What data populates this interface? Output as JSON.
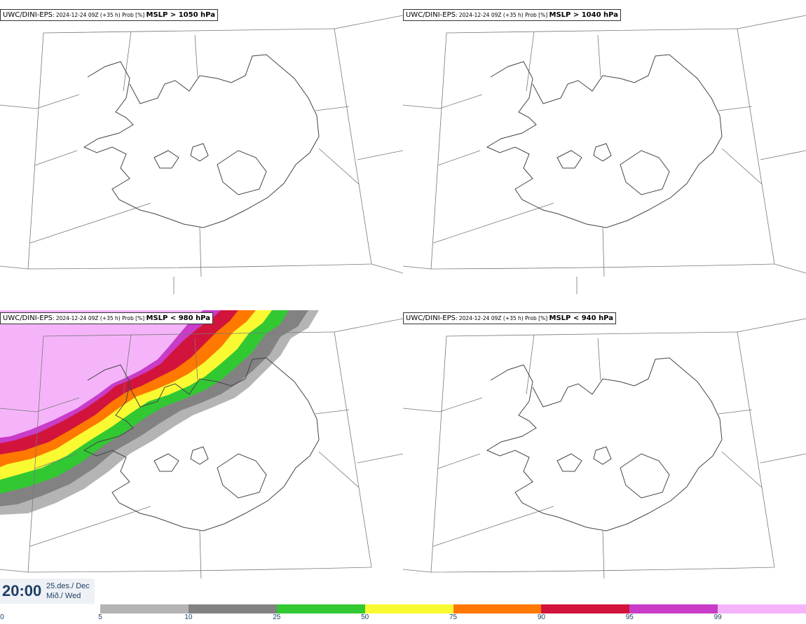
{
  "panels": [
    {
      "model": "UWC/DINI-EPS",
      "meta": ": 2024-12-24 09Z (+35 h) Prob [%] ",
      "field": "MSLP > 1050 hPa"
    },
    {
      "model": "UWC/DINI-EPS",
      "meta": ": 2024-12-24 09Z (+35 h) Prob [%] ",
      "field": "MSLP > 1040 hPa"
    },
    {
      "model": "UWC/DINI-EPS",
      "meta": ": 2024-12-24 09Z (+35 h) Prob [%] ",
      "field": "MSLP < 980 hPa"
    },
    {
      "model": "UWC/DINI-EPS",
      "meta": ": 2024-12-24 09Z (+35 h) Prob [%] ",
      "field": "MSLP < 940 hPa"
    }
  ],
  "valid_time": {
    "clock": "20:00",
    "date": "25.des./ Dec",
    "weekday": "Mið./ Wed"
  },
  "colorbar": {
    "ticks": [
      "0",
      "5",
      "10",
      "25",
      "50",
      "75",
      "90",
      "95",
      "99"
    ],
    "colors": [
      "#b4b4b4",
      "#828282",
      "#32c832",
      "#fafa32",
      "#ff7800",
      "#d2143c",
      "#c83cc8",
      "#f5b4fa"
    ]
  }
}
